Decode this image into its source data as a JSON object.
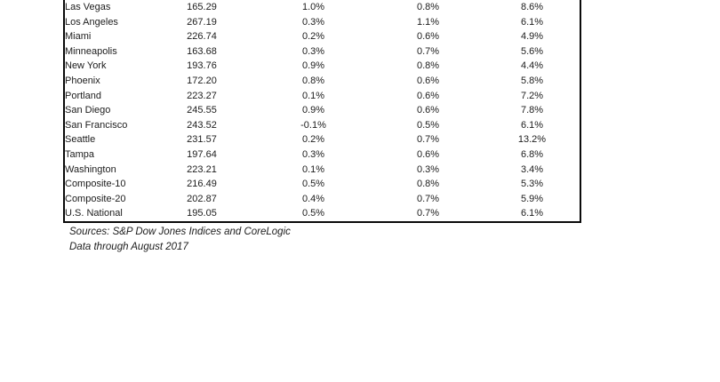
{
  "table": {
    "rows": [
      {
        "city": "Las Vegas",
        "values": [
          "165.29",
          "1.0%",
          "0.8%",
          "8.6%"
        ]
      },
      {
        "city": "Los Angeles",
        "values": [
          "267.19",
          "0.3%",
          "1.1%",
          "6.1%"
        ]
      },
      {
        "city": "Miami",
        "values": [
          "226.74",
          "0.2%",
          "0.6%",
          "4.9%"
        ]
      },
      {
        "city": "Minneapolis",
        "values": [
          "163.68",
          "0.3%",
          "0.7%",
          "5.6%"
        ]
      },
      {
        "city": "New York",
        "values": [
          "193.76",
          "0.9%",
          "0.8%",
          "4.4%"
        ]
      },
      {
        "city": "Phoenix",
        "values": [
          "172.20",
          "0.8%",
          "0.6%",
          "5.8%"
        ]
      },
      {
        "city": "Portland",
        "values": [
          "223.27",
          "0.1%",
          "0.6%",
          "7.2%"
        ]
      },
      {
        "city": "San Diego",
        "values": [
          "245.55",
          "0.9%",
          "0.6%",
          "7.8%"
        ]
      },
      {
        "city": "San Francisco",
        "values": [
          "243.52",
          "-0.1%",
          "0.5%",
          "6.1%"
        ]
      },
      {
        "city": "Seattle",
        "values": [
          "231.57",
          "0.2%",
          "0.7%",
          "13.2%"
        ]
      },
      {
        "city": "Tampa",
        "values": [
          "197.64",
          "0.3%",
          "0.6%",
          "6.8%"
        ]
      },
      {
        "city": "Washington",
        "values": [
          "223.21",
          "0.1%",
          "0.3%",
          "3.4%"
        ]
      },
      {
        "city": "Composite-10",
        "values": [
          "216.49",
          "0.5%",
          "0.8%",
          "5.3%"
        ]
      },
      {
        "city": "Composite-20",
        "values": [
          "202.87",
          "0.4%",
          "0.7%",
          "5.9%"
        ]
      },
      {
        "city": "U.S. National",
        "values": [
          "195.05",
          "0.5%",
          "0.7%",
          "6.1%"
        ]
      }
    ]
  },
  "footer": {
    "sources": "Sources: S&P Dow Jones Indices and CoreLogic",
    "data_through": "Data through August 2017"
  },
  "colors": {
    "background": "#ffffff",
    "text": "#1c1c1c",
    "border": "#0a0a0a"
  }
}
